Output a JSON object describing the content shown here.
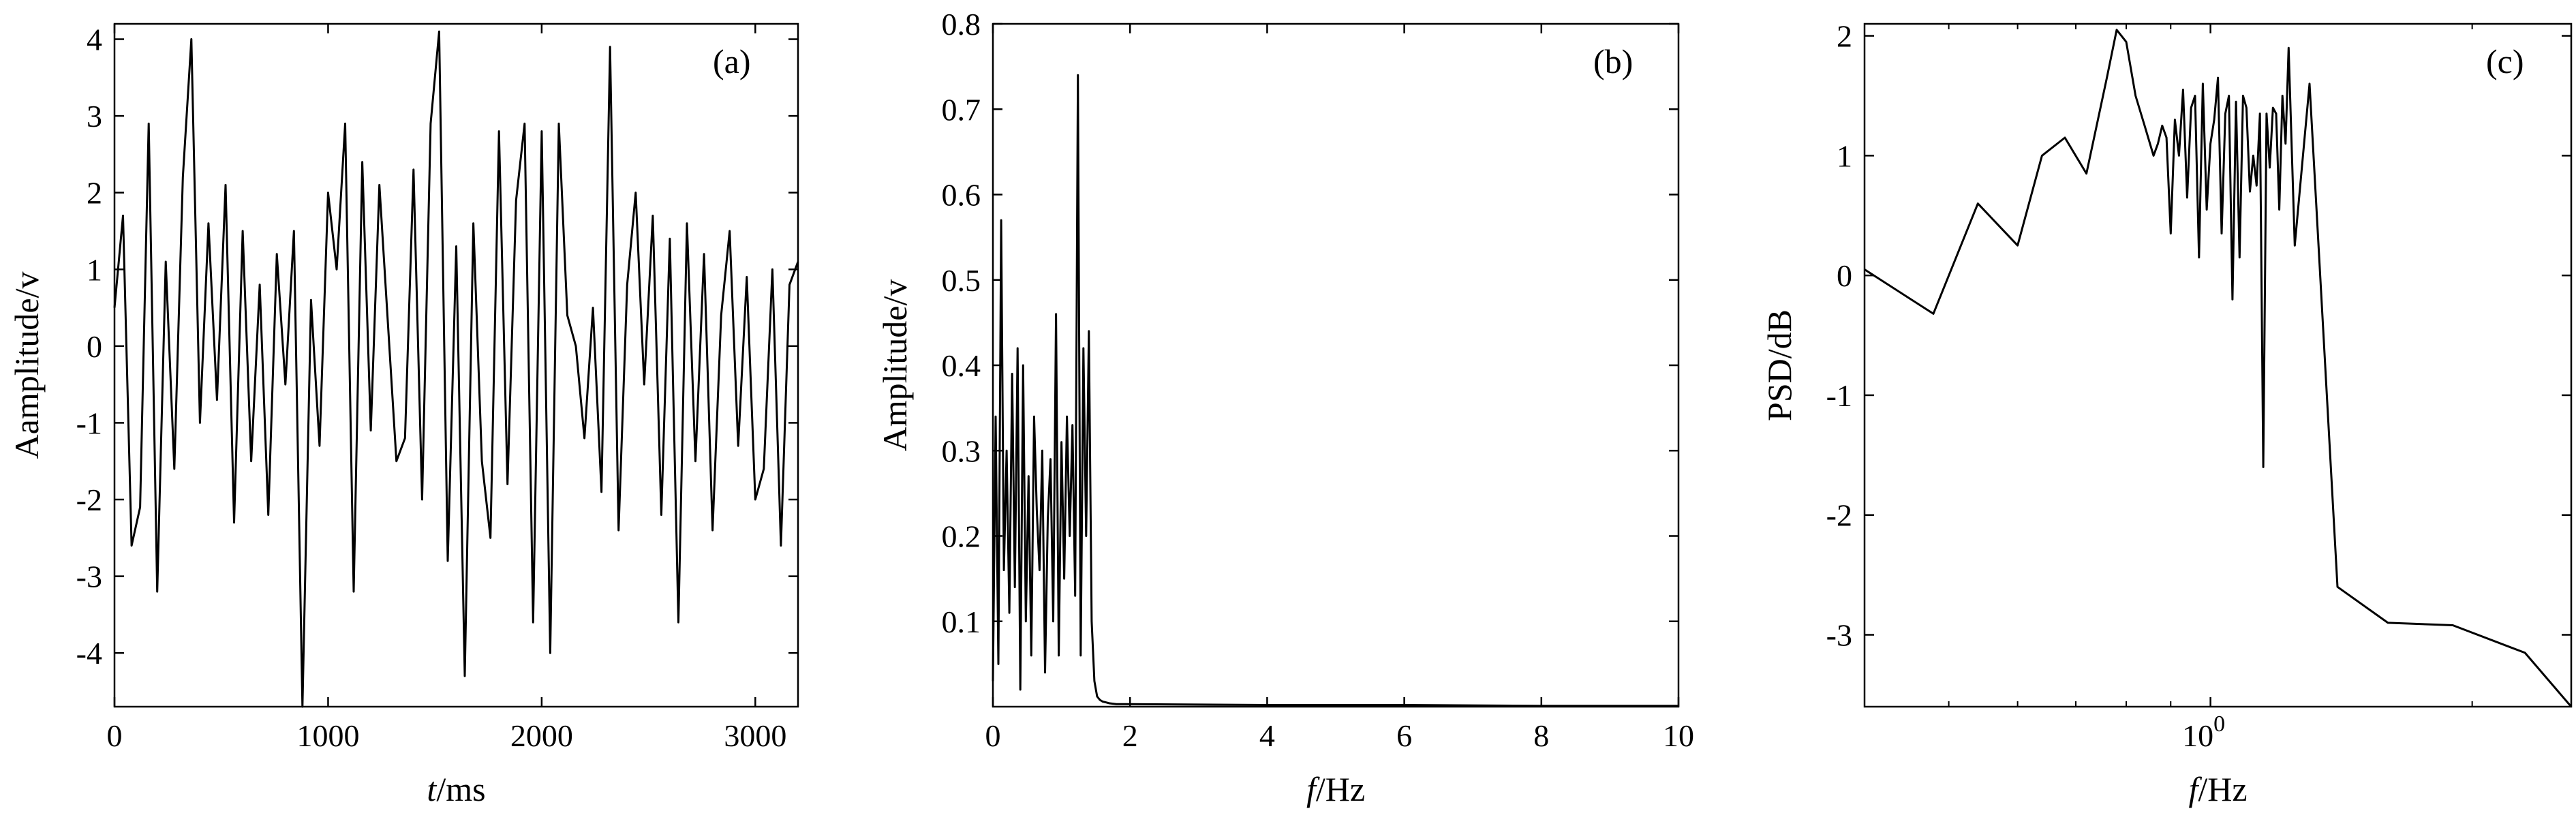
{
  "chart_data": [
    {
      "type": "line",
      "panel_label": "(a)",
      "xlabel_italic": "t",
      "xlabel_rest": "/ms",
      "ylabel": "Aamplitude/v",
      "xlim": [
        0,
        3200
      ],
      "ylim": [
        -4.7,
        4.2
      ],
      "xticks": [
        0,
        1000,
        2000,
        3000
      ],
      "xtick_labels": [
        "0",
        "1000",
        "2000",
        "3000"
      ],
      "yticks": [
        -4,
        -3,
        -2,
        -1,
        0,
        1,
        2,
        3,
        4
      ],
      "ytick_labels": [
        "-4",
        "-3",
        "-2",
        "-1",
        "0",
        "1",
        "2",
        "3",
        "4"
      ],
      "x": [
        0,
        40,
        80,
        120,
        160,
        200,
        240,
        280,
        320,
        360,
        400,
        440,
        480,
        520,
        560,
        600,
        640,
        680,
        720,
        760,
        800,
        840,
        880,
        920,
        960,
        1000,
        1040,
        1080,
        1120,
        1160,
        1200,
        1240,
        1280,
        1320,
        1360,
        1400,
        1440,
        1480,
        1520,
        1560,
        1600,
        1640,
        1680,
        1720,
        1760,
        1800,
        1840,
        1880,
        1920,
        1960,
        2000,
        2040,
        2080,
        2120,
        2160,
        2200,
        2240,
        2280,
        2320,
        2360,
        2400,
        2440,
        2480,
        2520,
        2560,
        2600,
        2640,
        2680,
        2720,
        2760,
        2800,
        2840,
        2880,
        2920,
        2960,
        3000,
        3040,
        3080,
        3120,
        3160,
        3200
      ],
      "y": [
        0.5,
        1.7,
        -2.6,
        -2.1,
        2.9,
        -3.2,
        1.1,
        -1.6,
        2.2,
        4.0,
        -1.0,
        1.6,
        -0.7,
        2.1,
        -2.3,
        1.5,
        -1.5,
        0.8,
        -2.2,
        1.2,
        -0.5,
        1.5,
        -4.7,
        0.6,
        -1.3,
        2.0,
        1.0,
        2.9,
        -3.2,
        2.4,
        -1.1,
        2.1,
        0.3,
        -1.5,
        -1.2,
        2.3,
        -2.0,
        2.9,
        4.1,
        -2.8,
        1.3,
        -4.3,
        1.6,
        -1.5,
        -2.5,
        2.8,
        -1.8,
        1.9,
        2.9,
        -3.6,
        2.8,
        -4.0,
        2.9,
        0.4,
        0.0,
        -1.2,
        0.5,
        -1.9,
        3.9,
        -2.4,
        0.8,
        2.0,
        -0.5,
        1.7,
        -2.2,
        1.4,
        -3.6,
        1.6,
        -1.5,
        1.2,
        -2.4,
        0.4,
        1.5,
        -1.3,
        0.9,
        -2.0,
        -1.6,
        1.0,
        -2.6,
        0.8,
        1.1
      ]
    },
    {
      "type": "line",
      "panel_label": "(b)",
      "xlabel_italic": "f",
      "xlabel_rest": "/Hz",
      "ylabel": "Amplitude/v",
      "xlim": [
        0,
        10
      ],
      "ylim": [
        0,
        0.8
      ],
      "xticks": [
        0,
        2,
        4,
        6,
        8,
        10
      ],
      "xtick_labels": [
        "0",
        "2",
        "4",
        "6",
        "8",
        "10"
      ],
      "yticks": [
        0.1,
        0.2,
        0.3,
        0.4,
        0.5,
        0.6,
        0.7,
        0.8
      ],
      "ytick_labels": [
        "0.1",
        "0.2",
        "0.3",
        "0.4",
        "0.5",
        "0.6",
        "0.7",
        "0.8"
      ],
      "x": [
        0.0,
        0.04,
        0.08,
        0.12,
        0.16,
        0.2,
        0.24,
        0.28,
        0.32,
        0.36,
        0.4,
        0.44,
        0.48,
        0.52,
        0.56,
        0.6,
        0.64,
        0.68,
        0.72,
        0.76,
        0.8,
        0.84,
        0.88,
        0.92,
        0.96,
        1.0,
        1.04,
        1.08,
        1.12,
        1.16,
        1.2,
        1.24,
        1.28,
        1.32,
        1.36,
        1.4,
        1.44,
        1.48,
        1.52,
        1.56,
        1.6,
        1.65,
        1.7,
        1.8,
        2.0,
        4.0,
        6.0,
        8.0,
        10.0
      ],
      "y": [
        0.03,
        0.34,
        0.05,
        0.57,
        0.16,
        0.3,
        0.11,
        0.39,
        0.14,
        0.42,
        0.02,
        0.4,
        0.1,
        0.27,
        0.06,
        0.34,
        0.23,
        0.16,
        0.3,
        0.04,
        0.22,
        0.29,
        0.1,
        0.46,
        0.06,
        0.31,
        0.15,
        0.34,
        0.2,
        0.33,
        0.13,
        0.74,
        0.06,
        0.42,
        0.2,
        0.44,
        0.1,
        0.03,
        0.012,
        0.008,
        0.006,
        0.005,
        0.004,
        0.003,
        0.003,
        0.002,
        0.002,
        0.001,
        0.001
      ]
    },
    {
      "type": "line",
      "panel_label": "(c)",
      "xlabel_italic": "f",
      "xlabel_rest": "/Hz",
      "ylabel": "PSD/dB",
      "xscale": "log",
      "xlim": [
        0.4,
        2.6
      ],
      "ylim": [
        -3.6,
        2.1
      ],
      "xticks": [
        1.0
      ],
      "xtick_labels": [
        "10"
      ],
      "xtick_label_exponent": "0",
      "yticks": [
        -3,
        -2,
        -1,
        0,
        1,
        2
      ],
      "ytick_labels": [
        "-3",
        "-2",
        "-1",
        "0",
        "1",
        "2"
      ],
      "x": [
        0.4,
        0.48,
        0.54,
        0.6,
        0.64,
        0.68,
        0.72,
        0.76,
        0.78,
        0.8,
        0.82,
        0.84,
        0.86,
        0.87,
        0.88,
        0.89,
        0.9,
        0.91,
        0.92,
        0.93,
        0.94,
        0.95,
        0.96,
        0.97,
        0.98,
        0.99,
        1.0,
        1.01,
        1.02,
        1.03,
        1.04,
        1.05,
        1.06,
        1.07,
        1.08,
        1.09,
        1.1,
        1.11,
        1.12,
        1.13,
        1.14,
        1.15,
        1.16,
        1.17,
        1.18,
        1.19,
        1.2,
        1.21,
        1.22,
        1.23,
        1.25,
        1.3,
        1.4,
        1.6,
        1.9,
        2.3,
        2.6
      ],
      "y": [
        0.05,
        -0.32,
        0.6,
        0.25,
        1.0,
        1.15,
        0.85,
        1.65,
        2.05,
        1.95,
        1.5,
        1.25,
        1.0,
        1.1,
        1.25,
        1.15,
        0.35,
        1.3,
        1.0,
        1.55,
        0.65,
        1.4,
        1.5,
        0.15,
        1.6,
        0.55,
        1.1,
        1.3,
        1.65,
        0.35,
        1.35,
        1.5,
        -0.2,
        1.45,
        0.15,
        1.5,
        1.4,
        0.7,
        1.0,
        0.75,
        1.35,
        -1.6,
        1.35,
        0.9,
        1.4,
        1.35,
        0.55,
        1.5,
        1.1,
        1.9,
        0.25,
        1.6,
        -2.6,
        -2.9,
        -2.92,
        -3.15,
        -3.6
      ]
    }
  ]
}
